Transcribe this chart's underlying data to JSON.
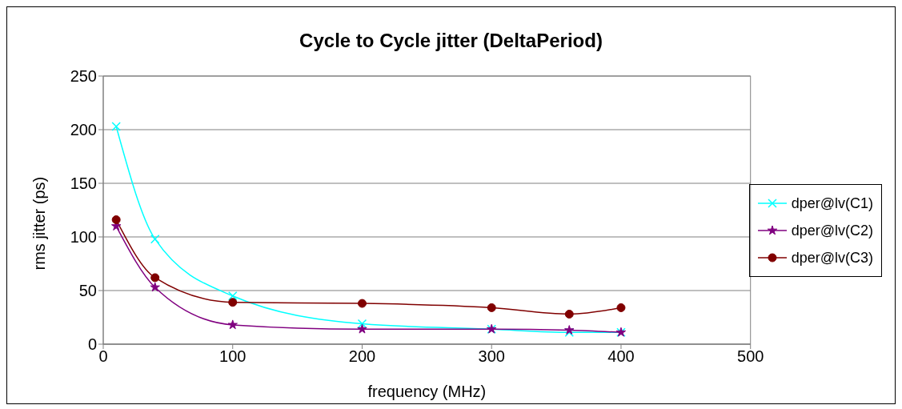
{
  "chart_data": {
    "type": "line",
    "title": "Cycle to Cycle jitter (DeltaPeriod)",
    "xlabel": "frequency (MHz)",
    "ylabel": "rms jitter (ps)",
    "x": [
      10,
      40,
      100,
      200,
      300,
      360,
      400
    ],
    "series": [
      {
        "name": "dper@lv(C1)",
        "color": "#00ffff",
        "marker": "cross",
        "values": [
          203,
          98,
          45,
          19,
          14,
          11,
          11
        ]
      },
      {
        "name": "dper@lv(C2)",
        "color": "#800080",
        "marker": "star",
        "values": [
          110,
          53,
          18,
          14,
          14,
          13,
          11
        ]
      },
      {
        "name": "dper@lv(C3)",
        "color": "#800000",
        "marker": "circle",
        "values": [
          116,
          62,
          39,
          38,
          34,
          28,
          34
        ]
      }
    ],
    "xlim": [
      0,
      500
    ],
    "xticks": [
      0,
      100,
      200,
      300,
      400,
      500
    ],
    "ylim": [
      0,
      250
    ],
    "yticks": [
      0,
      50,
      100,
      150,
      200,
      250
    ],
    "grid": "y",
    "legend": "right"
  }
}
